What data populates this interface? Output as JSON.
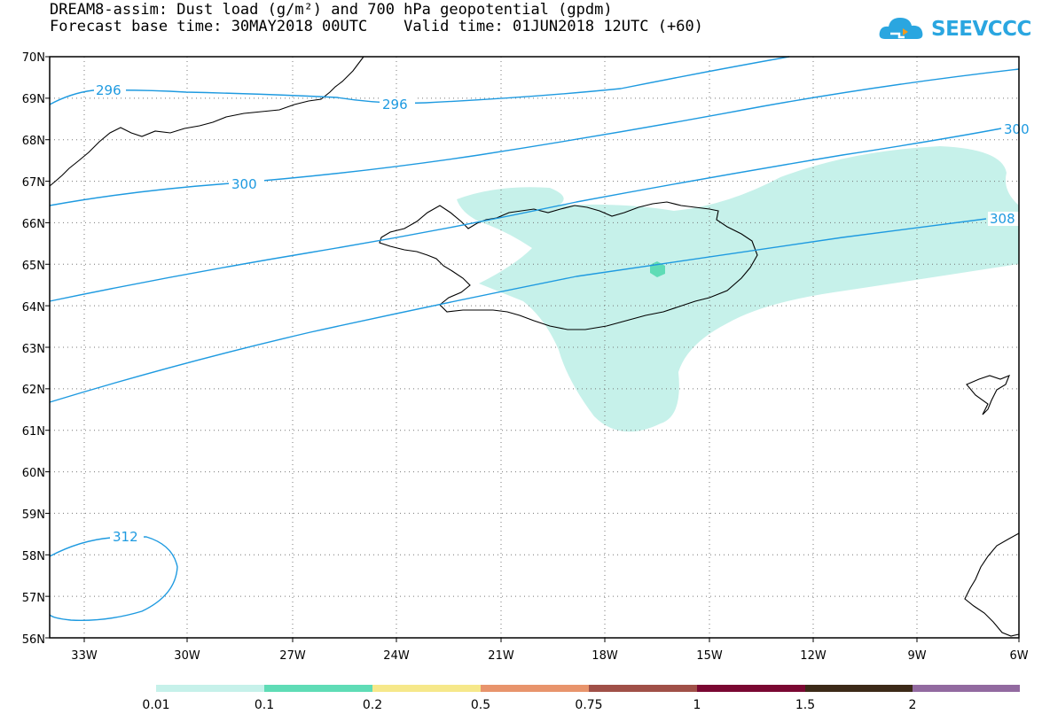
{
  "title": {
    "line1": "DREAM8-assim: Dust load (g/m²) and 700 hPa geopotential (gpdm)",
    "line2": "Forecast base time: 30MAY2018 00UTC    Valid time: 01JUN2018 12UTC (+60)"
  },
  "logo": {
    "text": "SEEVCCC",
    "icon": "cloud-logo-icon",
    "color": "#2aa6e0"
  },
  "map": {
    "lat_labels": [
      "70N",
      "69N",
      "68N",
      "67N",
      "66N",
      "65N",
      "64N",
      "63N",
      "62N",
      "61N",
      "60N",
      "59N",
      "58N",
      "57N",
      "56N"
    ],
    "lon_labels": [
      "33W",
      "30W",
      "27W",
      "24W",
      "21W",
      "18W",
      "15W",
      "12W",
      "9W",
      "6W"
    ],
    "contour_labels": [
      "296",
      "296",
      "300",
      "300",
      "308",
      "312"
    ],
    "colors": {
      "contour": "#1e9ae0",
      "dust_low": "#c6f1ea",
      "dust_mid": "#5fdcb6",
      "coast": "#000000"
    }
  },
  "colorbar": {
    "colors": [
      "#c6f1ea",
      "#5fdcb6",
      "#f6e88a",
      "#e8946c",
      "#a05048",
      "#7a0832",
      "#3c2a18",
      "#926aa0"
    ],
    "labels": [
      "0.01",
      "0.1",
      "0.2",
      "0.5",
      "0.75",
      "1",
      "1.5",
      "2"
    ]
  }
}
